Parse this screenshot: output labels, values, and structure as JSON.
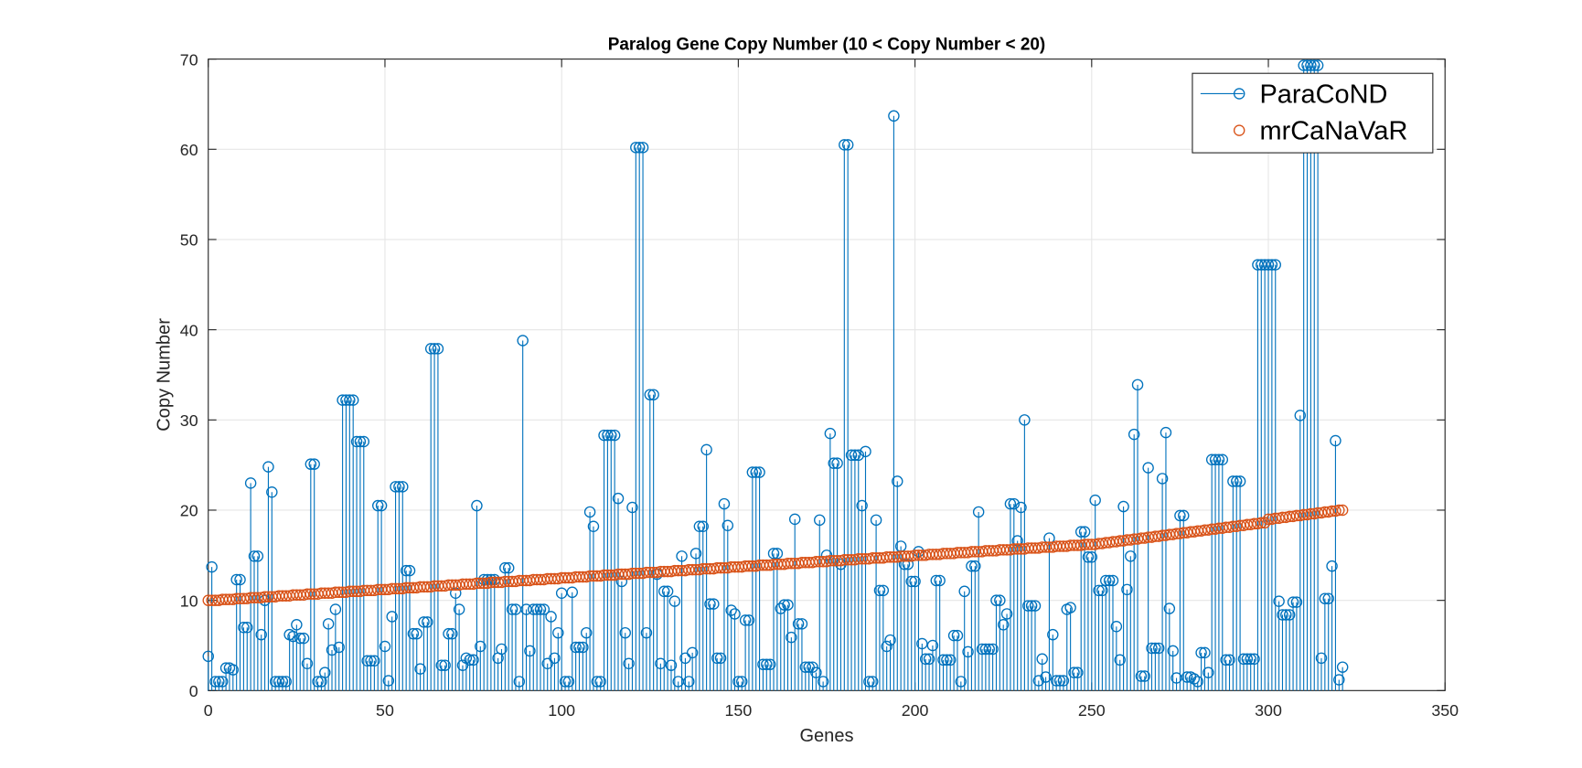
{
  "chart_data": {
    "type": "stem",
    "title": "Paralog Gene Copy Number (10 < Copy Number < 20)",
    "x_label": "Genes",
    "y_label": "Copy Number",
    "xlim": [
      0,
      350
    ],
    "ylim": [
      0,
      70
    ],
    "xticks": [
      0,
      50,
      100,
      150,
      200,
      250,
      300,
      350
    ],
    "yticks": [
      0,
      10,
      20,
      30,
      40,
      50,
      60,
      70
    ],
    "grid": true,
    "legend": "upper right",
    "x": [
      0,
      1,
      2,
      3,
      4,
      5,
      6,
      7,
      8,
      9,
      10,
      11,
      12,
      13,
      14,
      15,
      16,
      17,
      18,
      19,
      20,
      21,
      22,
      23,
      24,
      25,
      26,
      27,
      28,
      29,
      30,
      31,
      32,
      33,
      34,
      35,
      36,
      37,
      38,
      39,
      40,
      41,
      42,
      43,
      44,
      45,
      46,
      47,
      48,
      49,
      50,
      51,
      52,
      53,
      54,
      55,
      56,
      57,
      58,
      59,
      60,
      61,
      62,
      63,
      64,
      65,
      66,
      67,
      68,
      69,
      70,
      71,
      72,
      73,
      74,
      75,
      76,
      77,
      78,
      79,
      80,
      81,
      82,
      83,
      84,
      85,
      86,
      87,
      88,
      89,
      90,
      91,
      92,
      93,
      94,
      95,
      96,
      97,
      98,
      99,
      100,
      101,
      102,
      103,
      104,
      105,
      106,
      107,
      108,
      109,
      110,
      111,
      112,
      113,
      114,
      115,
      116,
      117,
      118,
      119,
      120,
      121,
      122,
      123,
      124,
      125,
      126,
      127,
      128,
      129,
      130,
      131,
      132,
      133,
      134,
      135,
      136,
      137,
      138,
      139,
      140,
      141,
      142,
      143,
      144,
      145,
      146,
      147,
      148,
      149,
      150,
      151,
      152,
      153,
      154,
      155,
      156,
      157,
      158,
      159,
      160,
      161,
      162,
      163,
      164,
      165,
      166,
      167,
      168,
      169,
      170,
      171,
      172,
      173,
      174,
      175,
      176,
      177,
      178,
      179,
      180,
      181,
      182,
      183,
      184,
      185,
      186,
      187,
      188,
      189,
      190,
      191,
      192,
      193,
      194,
      195,
      196,
      197,
      198,
      199,
      200,
      201,
      202,
      203,
      204,
      205,
      206,
      207,
      208,
      209,
      210,
      211,
      212,
      213,
      214,
      215,
      216,
      217,
      218,
      219,
      220,
      221,
      222,
      223,
      224,
      225,
      226,
      227,
      228,
      229,
      230,
      231,
      232,
      233,
      234,
      235,
      236,
      237,
      238,
      239,
      240,
      241,
      242,
      243,
      244,
      245,
      246,
      247,
      248,
      249,
      250,
      251,
      252,
      253,
      254,
      255,
      256,
      257,
      258,
      259,
      260,
      261,
      262,
      263,
      264,
      265,
      266,
      267,
      268,
      269,
      270,
      271,
      272,
      273,
      274,
      275,
      276,
      277,
      278,
      279,
      280,
      281,
      282,
      283,
      284,
      285,
      286,
      287,
      288,
      289,
      290,
      291,
      292,
      293,
      294,
      295,
      296,
      297,
      298,
      299,
      300,
      301,
      302,
      303,
      304,
      305,
      306,
      307,
      308,
      309,
      310,
      311,
      312,
      313,
      314,
      315,
      316,
      317,
      318,
      319,
      320,
      321
    ],
    "series": [
      {
        "name": "ParaCoND",
        "color": "#0072BD",
        "style": "stem",
        "values": [
          3.8,
          13.7,
          1,
          1,
          1,
          2.5,
          2.5,
          2.3,
          12.3,
          12.3,
          7,
          7,
          23,
          14.9,
          14.9,
          6.2,
          10,
          24.8,
          22,
          1,
          1,
          1,
          1,
          6.2,
          6,
          7.3,
          5.8,
          5.8,
          3,
          25.1,
          25.1,
          1,
          1,
          2,
          7.4,
          4.5,
          9,
          4.8,
          32.2,
          32.2,
          32.2,
          32.2,
          27.6,
          27.6,
          27.6,
          3.3,
          3.3,
          3.3,
          20.5,
          20.5,
          4.9,
          1.1,
          8.2,
          22.6,
          22.6,
          22.6,
          13.3,
          13.3,
          6.3,
          6.3,
          2.4,
          7.6,
          7.6,
          37.9,
          37.9,
          37.9,
          2.8,
          2.8,
          6.3,
          6.3,
          10.8,
          9,
          2.8,
          3.6,
          3.4,
          3.4,
          20.5,
          4.9,
          12.3,
          12.3,
          12.3,
          12.3,
          3.6,
          4.6,
          13.6,
          13.6,
          9,
          9,
          1,
          38.8,
          9,
          4.4,
          9,
          9,
          9,
          9,
          3,
          8.2,
          3.6,
          6.4,
          10.8,
          1,
          1,
          10.9,
          4.8,
          4.8,
          4.8,
          6.4,
          19.8,
          18.2,
          1,
          1,
          28.3,
          28.3,
          28.3,
          28.3,
          21.3,
          12.1,
          6.4,
          3,
          20.3,
          60.2,
          60.2,
          60.2,
          6.4,
          32.8,
          32.8,
          12.9,
          3,
          11,
          11,
          2.8,
          9.9,
          1,
          14.9,
          3.6,
          1,
          4.2,
          15.2,
          18.2,
          18.2,
          26.7,
          9.6,
          9.6,
          3.6,
          3.6,
          20.7,
          18.3,
          8.9,
          8.5,
          1,
          1,
          7.8,
          7.8,
          24.2,
          24.2,
          24.2,
          2.9,
          2.9,
          2.9,
          15.2,
          15.2,
          9.1,
          9.5,
          9.5,
          5.9,
          19,
          7.4,
          7.4,
          2.6,
          2.6,
          2.6,
          2,
          18.9,
          1,
          15,
          28.5,
          25.2,
          25.2,
          14,
          60.5,
          60.5,
          26.1,
          26.1,
          26.1,
          20.5,
          26.5,
          1,
          1,
          18.9,
          11.1,
          11.1,
          4.9,
          5.6,
          63.7,
          23.2,
          16,
          14,
          14,
          12.1,
          12.1,
          15.4,
          5.2,
          3.5,
          3.5,
          5,
          12.2,
          12.2,
          3.4,
          3.4,
          3.4,
          6.1,
          6.1,
          1,
          11,
          4.3,
          13.8,
          13.8,
          19.8,
          4.6,
          4.6,
          4.6,
          4.6,
          10,
          10,
          7.3,
          8.5,
          20.7,
          20.7,
          16.6,
          20.3,
          30,
          9.4,
          9.4,
          9.4,
          1.1,
          3.5,
          1.5,
          16.9,
          6.2,
          1.1,
          1.1,
          1.1,
          9,
          9.2,
          2,
          2,
          17.6,
          17.6,
          14.8,
          14.8,
          21.1,
          11.1,
          11.1,
          12.2,
          12.2,
          12.2,
          7.1,
          3.4,
          20.4,
          11.2,
          14.9,
          28.4,
          33.9,
          1.6,
          1.6,
          24.7,
          4.7,
          4.7,
          4.7,
          23.5,
          28.6,
          9.1,
          4.4,
          1.4,
          19.4,
          19.4,
          1.5,
          1.5,
          1.3,
          1,
          4.2,
          4.2,
          2,
          25.6,
          25.6,
          25.6,
          25.6,
          3.4,
          3.4,
          23.2,
          23.2,
          23.2,
          3.5,
          3.5,
          3.5,
          3.5,
          47.2,
          47.2,
          47.2,
          47.2,
          47.2,
          47.2,
          9.9,
          8.4,
          8.4,
          8.4,
          9.8,
          9.8,
          30.5,
          69.3,
          69.3,
          69.3,
          69.3,
          69.3,
          3.6,
          10.2,
          10.2,
          13.8,
          27.7,
          1.2,
          2.6
        ]
      },
      {
        "name": "mrCaNaVaR",
        "color": "#D95319",
        "style": "markers",
        "values": [
          10.0,
          10.0,
          10.0,
          10.0,
          10.1,
          10.1,
          10.1,
          10.1,
          10.2,
          10.2,
          10.2,
          10.2,
          10.3,
          10.3,
          10.3,
          10.3,
          10.4,
          10.4,
          10.4,
          10.4,
          10.5,
          10.5,
          10.5,
          10.5,
          10.6,
          10.6,
          10.6,
          10.6,
          10.7,
          10.7,
          10.7,
          10.7,
          10.8,
          10.8,
          10.8,
          10.8,
          10.9,
          10.9,
          10.9,
          10.9,
          11.0,
          11.0,
          11.0,
          11.0,
          11.1,
          11.1,
          11.1,
          11.1,
          11.2,
          11.2,
          11.2,
          11.2,
          11.3,
          11.3,
          11.3,
          11.3,
          11.4,
          11.4,
          11.4,
          11.4,
          11.5,
          11.5,
          11.5,
          11.5,
          11.6,
          11.6,
          11.6,
          11.6,
          11.7,
          11.7,
          11.7,
          11.7,
          11.8,
          11.8,
          11.8,
          11.8,
          11.9,
          11.9,
          11.9,
          11.9,
          12.0,
          12.0,
          12.0,
          12.0,
          12.1,
          12.1,
          12.1,
          12.1,
          12.2,
          12.2,
          12.2,
          12.2,
          12.3,
          12.3,
          12.3,
          12.3,
          12.4,
          12.4,
          12.4,
          12.4,
          12.5,
          12.5,
          12.5,
          12.5,
          12.6,
          12.6,
          12.6,
          12.6,
          12.7,
          12.7,
          12.7,
          12.7,
          12.8,
          12.8,
          12.8,
          12.8,
          12.9,
          12.9,
          12.9,
          12.9,
          13.0,
          13.0,
          13.0,
          13.0,
          13.1,
          13.1,
          13.1,
          13.1,
          13.2,
          13.2,
          13.2,
          13.2,
          13.3,
          13.3,
          13.3,
          13.3,
          13.4,
          13.4,
          13.4,
          13.4,
          13.5,
          13.5,
          13.5,
          13.5,
          13.6,
          13.6,
          13.6,
          13.6,
          13.7,
          13.7,
          13.7,
          13.7,
          13.8,
          13.8,
          13.8,
          13.8,
          13.9,
          13.9,
          13.9,
          13.9,
          14.0,
          14.0,
          14.0,
          14.0,
          14.1,
          14.1,
          14.1,
          14.1,
          14.2,
          14.2,
          14.2,
          14.2,
          14.3,
          14.3,
          14.3,
          14.3,
          14.4,
          14.4,
          14.4,
          14.4,
          14.5,
          14.5,
          14.5,
          14.5,
          14.6,
          14.6,
          14.6,
          14.6,
          14.7,
          14.7,
          14.7,
          14.7,
          14.8,
          14.8,
          14.8,
          14.8,
          14.9,
          14.9,
          14.9,
          14.9,
          15.0,
          15.0,
          15.0,
          15.0,
          15.1,
          15.1,
          15.1,
          15.1,
          15.2,
          15.2,
          15.2,
          15.2,
          15.3,
          15.3,
          15.3,
          15.3,
          15.4,
          15.4,
          15.4,
          15.4,
          15.5,
          15.5,
          15.5,
          15.5,
          15.6,
          15.6,
          15.6,
          15.6,
          15.7,
          15.7,
          15.7,
          15.7,
          15.8,
          15.8,
          15.8,
          15.8,
          15.9,
          15.9,
          15.9,
          15.9,
          16.0,
          16.0,
          16.0,
          16.0,
          16.1,
          16.1,
          16.1,
          16.1,
          16.2,
          16.2,
          16.2,
          16.2,
          16.3,
          16.3,
          16.4,
          16.4,
          16.5,
          16.5,
          16.6,
          16.6,
          16.7,
          16.7,
          16.8,
          16.8,
          16.9,
          16.9,
          17.0,
          17.0,
          17.1,
          17.1,
          17.2,
          17.2,
          17.3,
          17.3,
          17.4,
          17.4,
          17.5,
          17.5,
          17.6,
          17.6,
          17.7,
          17.7,
          17.8,
          17.8,
          17.9,
          17.9,
          18.0,
          18.0,
          18.1,
          18.1,
          18.2,
          18.2,
          18.3,
          18.3,
          18.4,
          18.4,
          18.5,
          18.5,
          18.6,
          18.6,
          19.0,
          19.0,
          19.1,
          19.1,
          19.2,
          19.2,
          19.3,
          19.3,
          19.4,
          19.4,
          19.5,
          19.5,
          19.6,
          19.6,
          19.7,
          19.7,
          19.8,
          19.8,
          19.9,
          19.9,
          20.0,
          20.0
        ]
      }
    ]
  }
}
